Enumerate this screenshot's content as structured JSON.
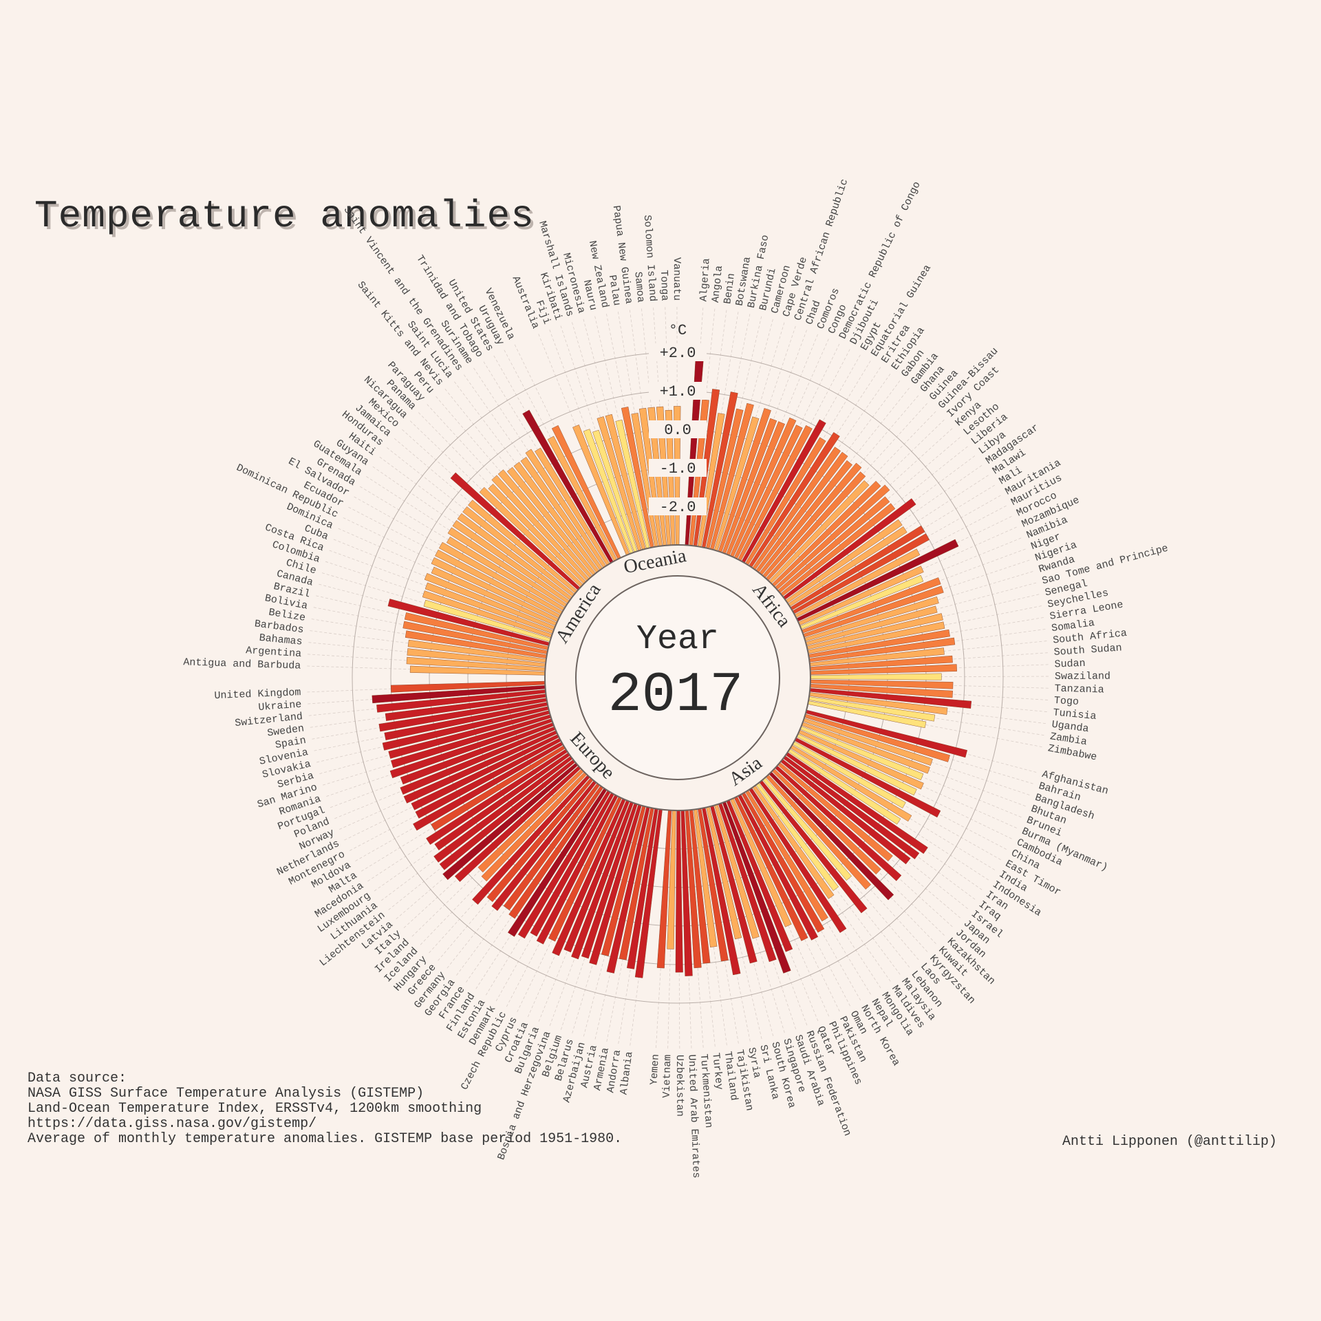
{
  "title": "Temperature anomalies",
  "year_label": "Year",
  "year": "2017",
  "unit": "°C",
  "source_lines": [
    "Data source:",
    "NASA GISS Surface Temperature Analysis (GISTEMP)",
    "Land-Ocean Temperature Index, ERSSTv4, 1200km smoothing",
    "https://data.giss.nasa.gov/gistemp/",
    "Average of monthly temperature anomalies. GISTEMP base period 1951-1980."
  ],
  "credit": "Antti Lipponen (@anttilip)",
  "colors": {
    "background": "#faf2ec",
    "bar_scale": [
      "#ffe27a",
      "#fdae5b",
      "#f57e3e",
      "#e24a2a",
      "#c71f24",
      "#a50f20"
    ]
  },
  "chart_data": {
    "type": "bar",
    "subtype": "radial",
    "ylim": [
      -3.0,
      2.2
    ],
    "ticks": [
      "+2.0",
      "+1.0",
      "0.0",
      "-1.0",
      "-2.0"
    ],
    "tick_values": [
      2.0,
      1.0,
      0.0,
      -1.0,
      -2.0
    ],
    "groups": [
      {
        "name": "Africa",
        "categories": [
          "Algeria",
          "Angola",
          "Benin",
          "Botswana",
          "Burkina Faso",
          "Burundi",
          "Cameroon",
          "Cape Verde",
          "Central African Republic",
          "Chad",
          "Comoros",
          "Congo",
          "Democratic Republic of Congo",
          "Djibouti",
          "Egypt",
          "Equatorial Guinea",
          "Eritrea",
          "Ethiopia",
          "Gabon",
          "Gambia",
          "Ghana",
          "Guinea",
          "Guinea-Bissau",
          "Ivory Coast",
          "Kenya",
          "Lesotho",
          "Liberia",
          "Libya",
          "Madagascar",
          "Malawi",
          "Mali",
          "Mauritania",
          "Mauritius",
          "Morocco",
          "Mozambique",
          "Namibia",
          "Niger",
          "Nigeria",
          "Rwanda",
          "Sao Tome and Principe",
          "Senegal",
          "Seychelles",
          "Sierra Leone",
          "Somalia",
          "South Africa",
          "South Sudan",
          "Sudan",
          "Swaziland",
          "Tanzania",
          "Togo",
          "Tunisia",
          "Uganda",
          "Zambia",
          "Zimbabwe"
        ],
        "values": [
          1.9,
          0.8,
          1.1,
          0.5,
          1.1,
          0.7,
          0.9,
          0.6,
          0.9,
          0.7,
          0.7,
          0.9,
          0.8,
          0.9,
          1.2,
          0.8,
          1.1,
          0.8,
          0.8,
          0.7,
          0.8,
          0.7,
          0.6,
          0.8,
          0.9,
          0.7,
          0.7,
          1.2,
          0.6,
          0.6,
          1.0,
          1.0,
          0.6,
          1.6,
          0.5,
          0.4,
          0.8,
          0.8,
          0.6,
          0.5,
          0.6,
          0.6,
          0.7,
          0.8,
          0.5,
          0.7,
          0.8,
          0.4,
          0.7,
          0.7,
          1.2,
          0.6,
          0.3,
          0.1
        ]
      },
      {
        "name": "Asia",
        "categories": [
          "Afghanistan",
          "Bahrain",
          "Bangladesh",
          "Bhutan",
          "Brunei",
          "Burma (Myanmar)",
          "Cambodia",
          "China",
          "East Timor",
          "India",
          "Indonesia",
          "Iran",
          "Iraq",
          "Israel",
          "Japan",
          "Jordan",
          "Kazakhstan",
          "Kuwait",
          "Kyrgyzstan",
          "Laos",
          "Lebanon",
          "Malaysia",
          "Maldives",
          "Mongolia",
          "Nepal",
          "North Korea",
          "Oman",
          "Pakistan",
          "Philippines",
          "Qatar",
          "Russian Federation",
          "Saudi Arabia",
          "Singapore",
          "South Korea",
          "Sri Lanka",
          "Syria",
          "Tajikistan",
          "Thailand",
          "Turkey",
          "Turkmenistan",
          "United Arab Emirates",
          "Uzbekistan",
          "Vietnam",
          "Yemen"
        ],
        "values": [
          1.3,
          0.9,
          0.5,
          0.5,
          0.4,
          0.5,
          0.4,
          1.2,
          0.3,
          0.6,
          0.4,
          1.4,
          1.3,
          1.2,
          0.8,
          1.3,
          0.8,
          1.5,
          0.9,
          0.4,
          1.3,
          0.4,
          0.5,
          1.4,
          0.9,
          1.1,
          1.2,
          1.1,
          0.6,
          1.2,
          1.7,
          1.3,
          0.6,
          1.2,
          0.5,
          1.4,
          1.0,
          0.6,
          1.0,
          1.1,
          1.3,
          1.2,
          0.6,
          1.1
        ]
      },
      {
        "name": "Europe",
        "categories": [
          "Albania",
          "Andorra",
          "Armenia",
          "Austria",
          "Azerbaijan",
          "Belarus",
          "Belgium",
          "Bosnia and Herzegovina",
          "Bulgaria",
          "Croatia",
          "Cyprus",
          "Czech Republic",
          "Denmark",
          "Estonia",
          "Finland",
          "France",
          "Georgia",
          "Germany",
          "Greece",
          "Hungary",
          "Iceland",
          "Ireland",
          "Italy",
          "Latvia",
          "Liechtenstein",
          "Lithuania",
          "Luxembourg",
          "Macedonia",
          "Malta",
          "Moldova",
          "Montenegro",
          "Netherlands",
          "Norway",
          "Poland",
          "Portugal",
          "Romania",
          "San Marino",
          "Serbia",
          "Slovakia",
          "Slovenia",
          "Spain",
          "Sweden",
          "Switzerland",
          "Ukraine",
          "United Kingdom"
        ],
        "values": [
          1.4,
          1.2,
          1.0,
          1.4,
          1.0,
          1.3,
          1.2,
          1.3,
          1.2,
          1.4,
          1.1,
          1.3,
          1.2,
          1.4,
          1.5,
          1.1,
          1.0,
          1.2,
          1.1,
          1.4,
          0.8,
          0.7,
          1.3,
          1.5,
          1.4,
          1.4,
          1.2,
          1.3,
          1.0,
          1.4,
          1.2,
          1.2,
          1.3,
          1.3,
          1.2,
          1.4,
          1.3,
          1.3,
          1.4,
          1.3,
          1.4,
          1.2,
          1.4,
          1.5,
          1.0
        ]
      },
      {
        "name": "America",
        "categories": [
          "Antigua and Barbuda",
          "Argentina",
          "Bahamas",
          "Barbados",
          "Belize",
          "Bolivia",
          "Brazil",
          "Canada",
          "Chile",
          "Colombia",
          "Costa Rica",
          "Cuba",
          "Dominica",
          "Dominican Republic",
          "Ecuador",
          "El Salvador",
          "Grenada",
          "Guatemala",
          "Guyana",
          "Haiti",
          "Honduras",
          "Jamaica",
          "Mexico",
          "Nicaragua",
          "Panama",
          "Paraguay",
          "Peru",
          "Saint Kitts and Nevis",
          "Saint Lucia",
          "Saint Vincent and the Grenadines",
          "Suriname",
          "Trinidad and Tobago",
          "United States",
          "Uruguay",
          "Venezuela"
        ],
        "values": [
          0.5,
          0.6,
          0.6,
          0.6,
          0.7,
          0.8,
          0.8,
          1.3,
          0.4,
          0.5,
          0.5,
          0.6,
          0.5,
          0.6,
          0.6,
          0.6,
          0.5,
          0.6,
          0.6,
          0.6,
          0.6,
          0.6,
          1.4,
          0.6,
          0.5,
          0.6,
          0.6,
          0.5,
          0.5,
          0.5,
          0.6,
          0.5,
          1.5,
          0.6,
          0.8
        ]
      },
      {
        "name": "Oceania",
        "categories": [
          "Australia",
          "Fiji",
          "Kiribati",
          "Marshall Islands",
          "Micronesia",
          "Nauru",
          "New Zealand",
          "Palau",
          "Papua New Guinea",
          "Samoa",
          "Solomon Island",
          "Tonga",
          "Vanuatu"
        ],
        "values": [
          0.6,
          0.4,
          0.3,
          0.6,
          0.6,
          0.4,
          0.7,
          0.5,
          0.6,
          0.6,
          0.6,
          0.5,
          0.6
        ]
      }
    ]
  }
}
